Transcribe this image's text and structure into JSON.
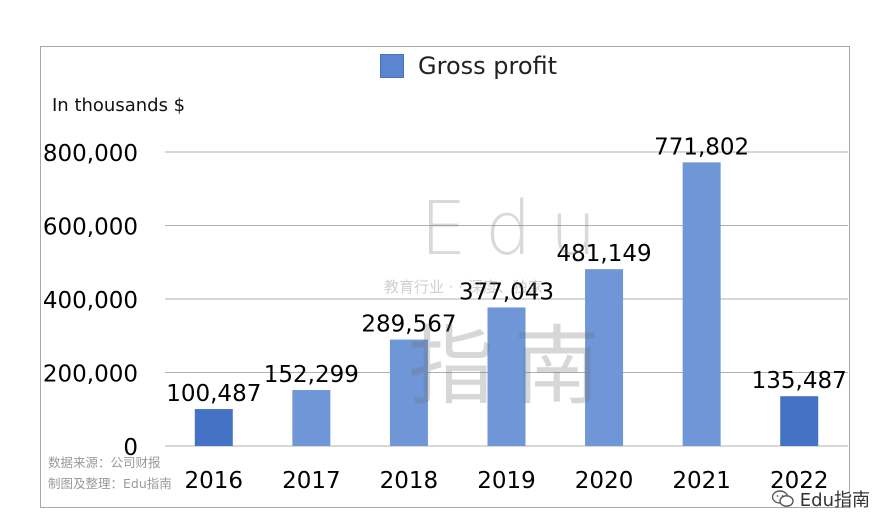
{
  "chart_data": {
    "type": "bar",
    "categories": [
      "2016",
      "2017",
      "2018",
      "2019",
      "2020",
      "2021",
      "2022"
    ],
    "series": [
      {
        "name": "Gross profit",
        "values": [
          100487,
          152299,
          289567,
          377043,
          481149,
          771802,
          135487
        ]
      }
    ],
    "data_labels": [
      "100,487",
      "152,299",
      "289,567",
      "377,043",
      "481,149",
      "771,802",
      "135,487"
    ],
    "y_ticks": [
      "0",
      "200,000",
      "400,000",
      "600,000",
      "800,000"
    ],
    "y_tick_values": [
      0,
      200000,
      400000,
      600000,
      800000
    ],
    "ylim": [
      0,
      800000
    ],
    "ylabel": "In thousands $",
    "xlabel": "",
    "title": "",
    "legend": {
      "placement": "top",
      "label": "Gross profit"
    },
    "grid": true,
    "colors": {
      "bar_dark": "#4472c4",
      "bar_light": "#6f96d6",
      "grid": "#b0b0b0"
    }
  },
  "source_note": {
    "line1": "数据来源：公司财报",
    "line2": "制图及整理：Edu指南"
  },
  "watermark": {
    "main": "Edu",
    "sub": "教育行业 ·  · 深度、独家",
    "cjk": "指南"
  },
  "brand_badge": {
    "icon": "wechat-icon",
    "text": "Edu指南"
  }
}
